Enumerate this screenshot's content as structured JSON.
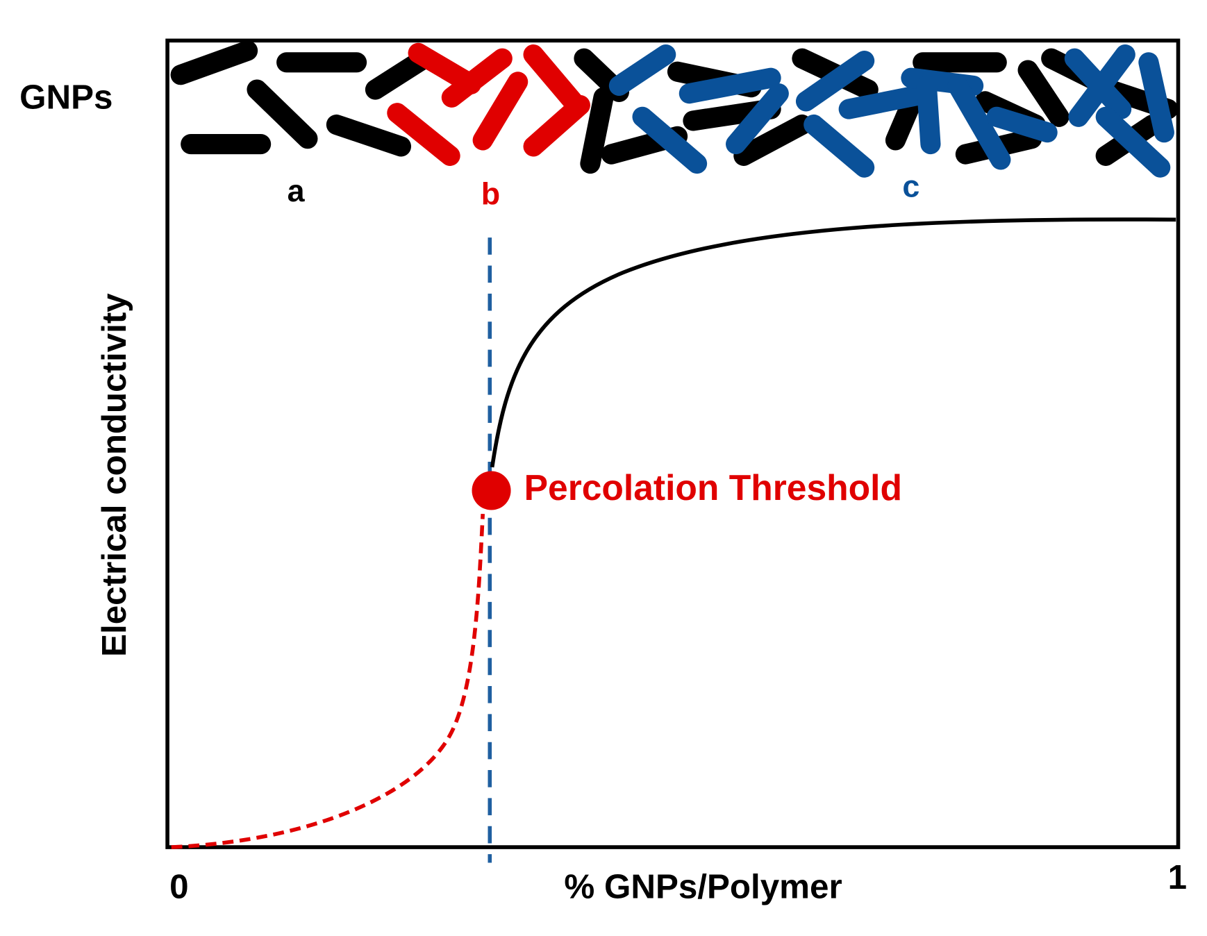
{
  "labels": {
    "gnps": "GNPs",
    "a": "a",
    "b": "b",
    "c": "c",
    "y_axis": "Electrical conductivity",
    "x_axis": "% GNPs/Polymer",
    "x_start": "0",
    "x_end": "1",
    "threshold": "Percolation Threshold"
  }
}
